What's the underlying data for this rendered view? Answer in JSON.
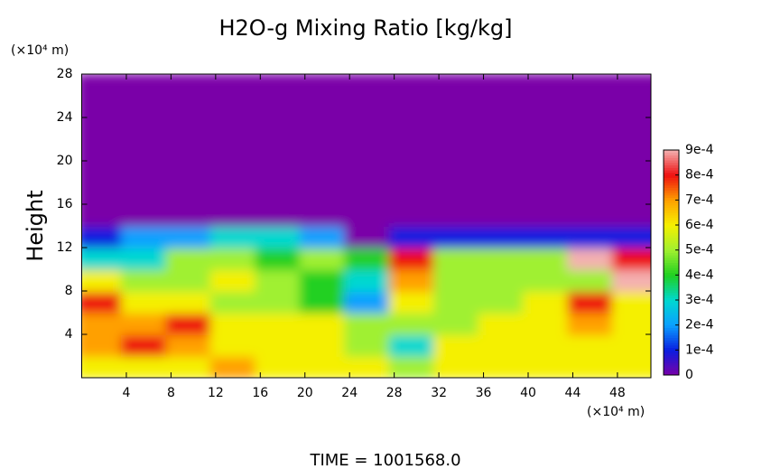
{
  "chart_data": {
    "type": "heatmap",
    "title": "H2O-g Mixing Ratio [kg/kg]",
    "y_label": "Height",
    "x_unit": "(×10⁴ m)",
    "y_unit": "(×10⁴ m)",
    "footer": "TIME = 1001568.0",
    "xlim": [
      0,
      51
    ],
    "ylim": [
      0,
      28
    ],
    "xticks": [
      4,
      8,
      12,
      16,
      20,
      24,
      28,
      32,
      36,
      40,
      44,
      48
    ],
    "yticks": [
      4,
      8,
      12,
      16,
      20,
      24,
      28
    ],
    "x": [
      2,
      6,
      10,
      14,
      18,
      22,
      26,
      30,
      34,
      38,
      42,
      46,
      50
    ],
    "y": [
      1,
      3,
      5,
      7,
      9,
      11,
      13,
      15,
      17,
      19,
      21,
      23,
      25,
      27
    ],
    "z": [
      [
        0.0006,
        0.0006,
        0.0006,
        0.0007,
        0.0006,
        0.0006,
        0.0006,
        0.0005,
        0.0006,
        0.0006,
        0.0006,
        0.0006,
        0.0006
      ],
      [
        0.0007,
        0.0008,
        0.0007,
        0.0006,
        0.0006,
        0.0006,
        0.0005,
        0.0003,
        0.0006,
        0.0006,
        0.0006,
        0.0006,
        0.0006
      ],
      [
        0.0007,
        0.0007,
        0.0008,
        0.0006,
        0.0006,
        0.0006,
        0.0005,
        0.0005,
        0.0005,
        0.0006,
        0.0006,
        0.0007,
        0.0006
      ],
      [
        0.0008,
        0.0006,
        0.0006,
        0.0005,
        0.0005,
        0.0004,
        0.0002,
        0.0006,
        0.0005,
        0.0005,
        0.0006,
        0.0008,
        0.0006
      ],
      [
        0.0006,
        0.0005,
        0.0005,
        0.0006,
        0.0005,
        0.0004,
        0.0003,
        0.0007,
        0.0005,
        0.0005,
        0.0005,
        0.0005,
        0.0009
      ],
      [
        0.0003,
        0.0003,
        0.0005,
        0.0005,
        0.0004,
        0.0005,
        0.0004,
        0.0008,
        0.0005,
        0.0005,
        0.0005,
        0.0009,
        0.0008
      ],
      [
        0.0001,
        0.0002,
        0.0002,
        0.0003,
        0.0003,
        0.0002,
        0,
        0.0001,
        0.0001,
        0.0001,
        0.0001,
        0.0001,
        0.0001
      ],
      [
        0,
        0,
        0,
        0,
        0,
        0,
        0,
        0,
        0,
        0,
        0,
        0,
        0
      ],
      [
        0,
        0,
        0,
        0,
        0,
        0,
        0,
        0,
        0,
        0,
        0,
        0,
        0
      ],
      [
        0,
        0,
        0,
        0,
        0,
        0,
        0,
        0,
        0,
        0,
        0,
        0,
        0
      ],
      [
        0,
        0,
        0,
        0,
        0,
        0,
        0,
        0,
        0,
        0,
        0,
        0,
        0
      ],
      [
        0,
        0,
        0,
        0,
        0,
        0,
        0,
        0,
        0,
        0,
        0,
        0,
        0
      ],
      [
        0,
        0,
        0,
        0,
        0,
        0,
        0,
        0,
        0,
        0,
        0,
        0,
        0
      ],
      [
        0,
        0,
        0,
        0,
        0,
        0,
        0,
        0,
        0,
        0,
        0,
        0,
        0
      ]
    ],
    "zlim": [
      0,
      0.0009
    ],
    "zticks": [
      0,
      {
        "value": 0.0001,
        "label": "1e-4"
      },
      {
        "value": 0.0002,
        "label": "2e-4"
      },
      {
        "value": 0.0003,
        "label": "3e-4"
      },
      {
        "value": 0.0004,
        "label": "4e-4"
      },
      {
        "value": 0.0005,
        "label": "5e-4"
      },
      {
        "value": 0.0006,
        "label": "6e-4"
      },
      {
        "value": 0.0007,
        "label": "7e-4"
      },
      {
        "value": 0.0008,
        "label": "8e-4"
      },
      {
        "value": 0.0009,
        "label": "9e-4"
      }
    ],
    "colors": [
      "#7a00a8",
      "#0a1ee0",
      "#0aa0ff",
      "#00d8d0",
      "#20d020",
      "#a0f030",
      "#f5f000",
      "#ffa000",
      "#ee1010",
      "#f4b0b0"
    ]
  }
}
